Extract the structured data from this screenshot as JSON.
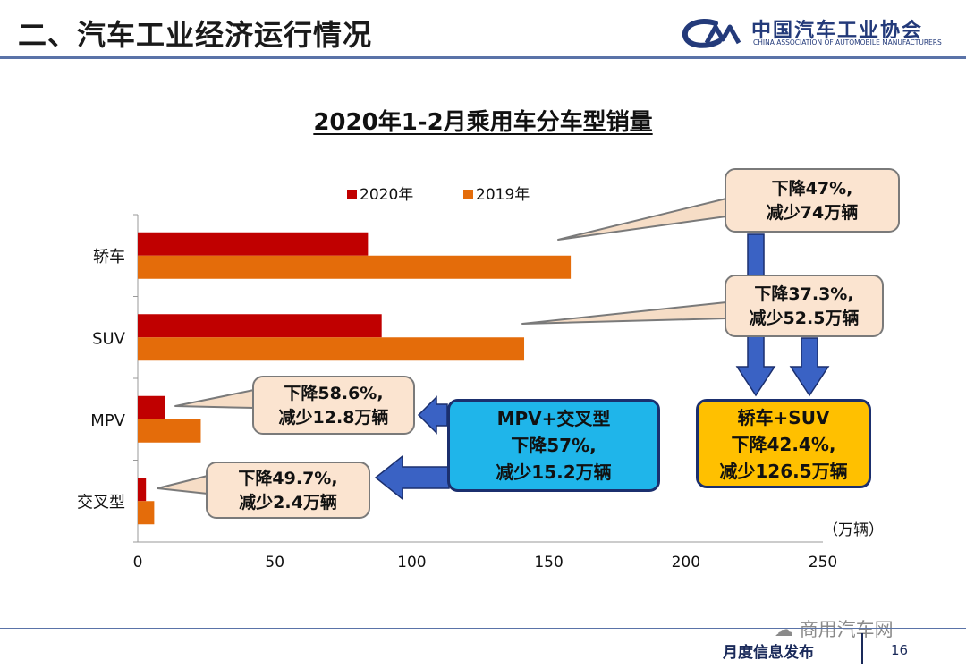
{
  "header": {
    "title": "二、汽车工业经济运行情况",
    "logo_cn": "中国汽车工业协会",
    "logo_en": "CHINA ASSOCIATION OF AUTOMOBILE MANUFACTURERS"
  },
  "chart_data": {
    "type": "bar",
    "orientation": "horizontal",
    "title": "2020年1-2月乘用车分车型销量",
    "unit_label": "（万辆）",
    "categories": [
      "轿车",
      "SUV",
      "MPV",
      "交叉型"
    ],
    "series": [
      {
        "name": "2020年",
        "color": "#c00000",
        "values": [
          84,
          89,
          10,
          3
        ]
      },
      {
        "name": "2019年",
        "color": "#e46c0a",
        "values": [
          158,
          141,
          23,
          6
        ]
      }
    ],
    "xlim": [
      0,
      250
    ],
    "x_ticks": [
      "0",
      "50",
      "100",
      "150",
      "200",
      "250"
    ],
    "legend_position": "top"
  },
  "callouts": {
    "sedan": [
      "下降47%,",
      "减少74万辆"
    ],
    "suv": [
      "下降37.3%,",
      "减少52.5万辆"
    ],
    "mpv": [
      "下降58.6%,",
      "减少12.8万辆"
    ],
    "crossover": [
      "下降49.7%,",
      "减少2.4万辆"
    ]
  },
  "summaries": {
    "mpv_crossover": [
      "MPV+交叉型",
      "下降57%,",
      "减少15.2万辆"
    ],
    "sedan_suv": [
      "轿车+SUV",
      "下降42.4%,",
      "减少126.5万辆"
    ]
  },
  "colors": {
    "arrow_blue": "#3a62c4",
    "callout_bg": "#fbe4d0",
    "blue_box": "#1fb5ea",
    "yellow_box": "#ffc000"
  },
  "footer": {
    "label": "月度信息发布",
    "page": "16",
    "watermark": "商用汽车网"
  }
}
